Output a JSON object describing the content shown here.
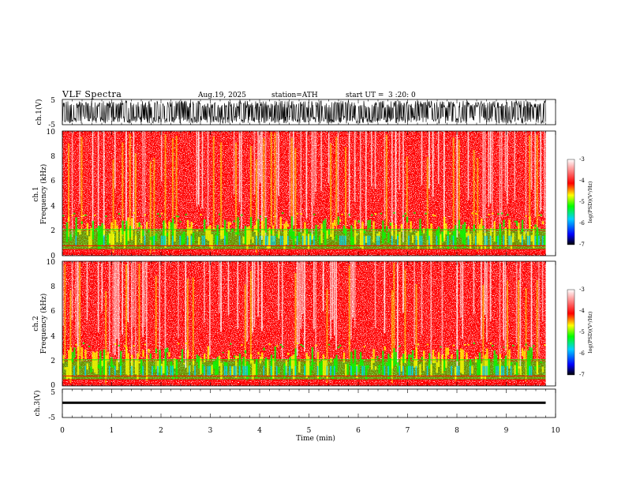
{
  "header": {
    "title": "VLF  Spectra",
    "date": "Aug.19, 2025",
    "station": "station=ATH",
    "start_label": "start  UT  =",
    "start_time": "3  :20: 0"
  },
  "chart_data": [
    {
      "type": "line",
      "name": "ch1-waveform",
      "ylabel": "ch.1(V)",
      "ylim": [
        -5,
        5
      ],
      "yticks": [
        "5",
        "-5"
      ],
      "x_range_min": [
        0,
        9.8
      ],
      "amplitude_v": 4.5
    },
    {
      "type": "heatmap",
      "name": "ch1-spectrogram",
      "ylabel_line1": "ch.1",
      "ylabel_line2": "Frequency  (kHz)",
      "ylim": [
        0,
        10
      ],
      "yticks": [
        "0",
        "2",
        "4",
        "6",
        "8",
        "10"
      ],
      "x_range_min": [
        0,
        9.8
      ],
      "dominant_log_psd": -4,
      "low_band_khz": [
        0.5,
        2
      ],
      "low_band_log_psd": -5
    },
    {
      "type": "heatmap",
      "name": "ch2-spectrogram",
      "ylabel_line1": "ch.2",
      "ylabel_line2": "Frequency  (kHz)",
      "ylim": [
        0,
        10
      ],
      "yticks": [
        "0",
        "2",
        "4",
        "6",
        "8",
        "10"
      ],
      "x_range_min": [
        0,
        9.8
      ],
      "dominant_log_psd": -4,
      "low_band_khz": [
        0.5,
        2
      ],
      "low_band_log_psd": -5
    },
    {
      "type": "line",
      "name": "ch3-waveform",
      "ylabel": "ch.3(V)",
      "ylim": [
        -5,
        5
      ],
      "yticks": [
        "5",
        "-5"
      ],
      "x_range_min": [
        0,
        9.8
      ],
      "level_v": 0.2
    }
  ],
  "xaxis": {
    "label": "Time  (min)",
    "range": [
      0,
      10
    ],
    "ticks": [
      "0",
      "1",
      "2",
      "3",
      "4",
      "5",
      "6",
      "7",
      "8",
      "9",
      "10"
    ]
  },
  "colorbar": {
    "label": "log(PSD)(V²/Hz)",
    "range": [
      -7,
      -3
    ],
    "ticks": [
      "-3",
      "-4",
      "-5",
      "-6",
      "-7"
    ],
    "colors": [
      "#000000",
      "#0000ff",
      "#00d0ff",
      "#00ff00",
      "#ffff00",
      "#ff0000",
      "#ffffff"
    ]
  }
}
